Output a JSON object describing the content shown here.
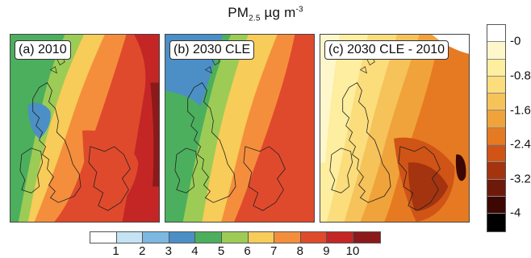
{
  "title": {
    "main": "PM",
    "sub": "2.5",
    "unit": " µg m",
    "sup": "-3"
  },
  "panels": [
    {
      "label": "(a) 2010",
      "scale": "pm25"
    },
    {
      "label": "(b) 2030 CLE",
      "scale": "pm25"
    },
    {
      "label": "(c) 2030 CLE - 2010",
      "scale": "difference"
    }
  ],
  "pm25_colorbar": {
    "ticks": [
      "1",
      "2",
      "3",
      "4",
      "5",
      "6",
      "7",
      "8",
      "9",
      "10"
    ],
    "colors": [
      "#ffffff",
      "#c4e3f5",
      "#7cb8e2",
      "#4b8fc6",
      "#4caf5d",
      "#9ccc55",
      "#f7cc58",
      "#f48e3c",
      "#e04a2c",
      "#c42626",
      "#8c1a1a"
    ]
  },
  "difference_colorbar": {
    "ticks": [
      "-0",
      "-0.8",
      "-1.6",
      "-2.4",
      "-3.2",
      "-4"
    ],
    "colors": [
      "#ffffff",
      "#fff7cc",
      "#fdeea0",
      "#fbdd7c",
      "#f6c25a",
      "#f0a33a",
      "#e67a22",
      "#cf5416",
      "#a3340f",
      "#6e1a0a",
      "#3d0704",
      "#000000"
    ]
  }
}
